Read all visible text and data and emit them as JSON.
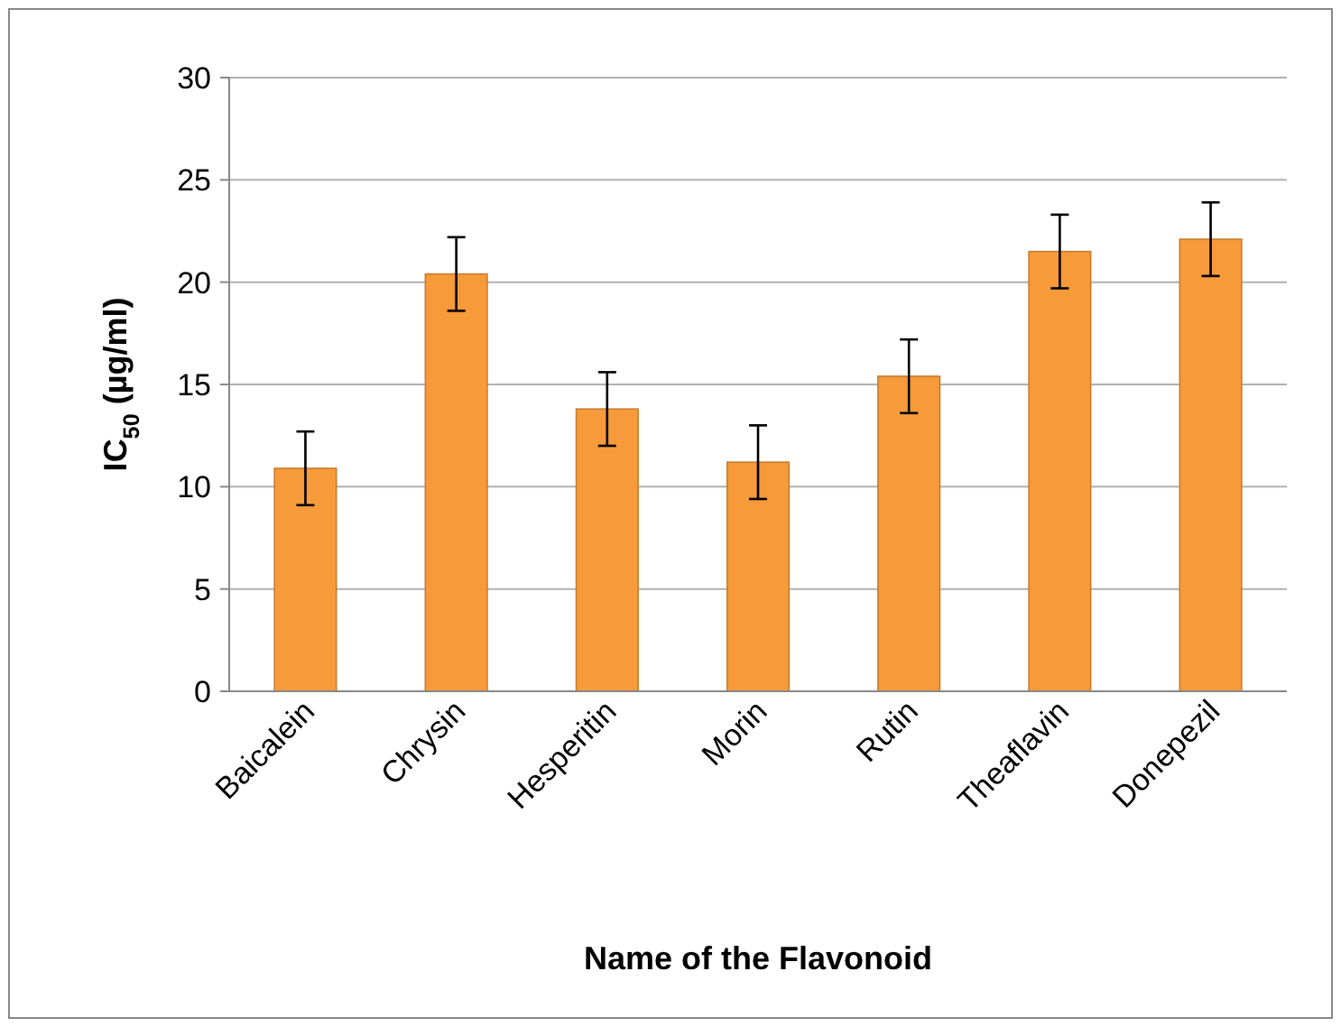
{
  "chart_data": {
    "type": "bar",
    "xlabel": "Name of the Flavonoid",
    "ylabel": "IC$_{50}$ (µg/ml)",
    "categories": [
      "Baicalein",
      "Chrysin",
      "Hesperitin",
      "Morin",
      "Rutin",
      "Theaflavin",
      "Donepezil"
    ],
    "values": [
      10.9,
      20.4,
      13.8,
      11.2,
      15.4,
      21.5,
      22.1
    ],
    "errors": [
      1.8,
      1.8,
      1.8,
      1.8,
      1.8,
      1.8,
      1.8
    ],
    "color": "#f79a3a",
    "ylim": [
      0,
      30
    ],
    "yticks": [
      0,
      5,
      10,
      15,
      20,
      25,
      30
    ],
    "grid": "y"
  }
}
